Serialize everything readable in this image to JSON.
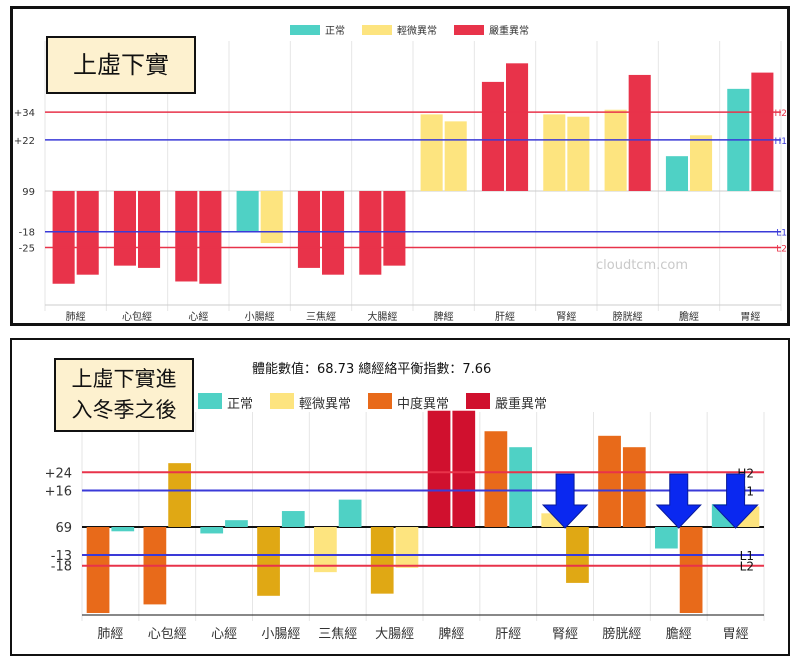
{
  "watermark": "cloudtcm.com",
  "top_panel": {
    "label": "上虛下實",
    "legend": [
      {
        "name": "正常",
        "color": "#4fd1c5"
      },
      {
        "name": "輕微異常",
        "color": "#fde47f"
      },
      {
        "name": "嚴重異常",
        "color": "#e8334a"
      }
    ]
  },
  "bottom_panel": {
    "label_line1": "上虛下實進",
    "label_line2": "入冬季之後",
    "info": "體能數值：68.73 總經絡平衡指數：7.66",
    "legend": [
      {
        "name": "正常",
        "color": "#4fd1c5"
      },
      {
        "name": "輕微異常",
        "color": "#fde47f"
      },
      {
        "name": "中度異常",
        "color": "#e86a1a"
      },
      {
        "name": "嚴重異常",
        "color": "#d0102e"
      }
    ]
  },
  "chart_data": [
    {
      "type": "bar",
      "categories": [
        "肺經",
        "心包經",
        "心經",
        "小腸經",
        "三焦經",
        "大腸經",
        "脾經",
        "肝經",
        "腎經",
        "膀胱經",
        "膽經",
        "胃經"
      ],
      "baseline_label": "99",
      "ylim": [
        -42,
        56
      ],
      "series": [
        {
          "values": [
            -41,
            -33,
            -40,
            -18,
            -34,
            -37,
            33,
            47,
            33,
            35,
            15,
            44
          ]
        },
        {
          "values": [
            -37,
            -34,
            -41,
            -23,
            -37,
            -33,
            30,
            55,
            32,
            50,
            24,
            51
          ]
        }
      ],
      "bar_colors": [
        [
          "#e8334a",
          "#e8334a"
        ],
        [
          "#e8334a",
          "#e8334a"
        ],
        [
          "#e8334a",
          "#e8334a"
        ],
        [
          "#4fd1c5",
          "#fde47f"
        ],
        [
          "#e8334a",
          "#e8334a"
        ],
        [
          "#e8334a",
          "#e8334a"
        ],
        [
          "#fde47f",
          "#fde47f"
        ],
        [
          "#e8334a",
          "#e8334a"
        ],
        [
          "#fde47f",
          "#fde47f"
        ],
        [
          "#fde47f",
          "#e8334a"
        ],
        [
          "#4fd1c5",
          "#fde47f"
        ],
        [
          "#4fd1c5",
          "#e8334a"
        ]
      ],
      "reference_lines": [
        {
          "name": "H2",
          "value": 34,
          "axis_label": "+34",
          "color": "#e8334a"
        },
        {
          "name": "H1",
          "value": 22,
          "axis_label": "+22",
          "color": "#3a3ad8"
        },
        {
          "name": "L1",
          "value": -18,
          "axis_label": "-18",
          "color": "#3a3ad8"
        },
        {
          "name": "L2",
          "value": -25,
          "axis_label": "-25",
          "color": "#e8334a"
        }
      ]
    },
    {
      "type": "bar",
      "categories": [
        "肺經",
        "心包經",
        "心經",
        "小腸經",
        "三焦經",
        "大腸經",
        "脾經",
        "肝經",
        "腎經",
        "膀胱經",
        "膽經",
        "胃經"
      ],
      "baseline_label": "69",
      "ylim": [
        -40,
        50
      ],
      "series": [
        {
          "values": [
            -40,
            -36,
            -3,
            -32,
            -21,
            -31,
            51,
            42,
            6,
            40,
            -10,
            10
          ]
        },
        {
          "values": [
            -2,
            28,
            3,
            7,
            12,
            -19,
            51,
            35,
            -26,
            35,
            -40,
            9
          ]
        }
      ],
      "bar_colors": [
        [
          "#e86a1a",
          "#4fd1c5"
        ],
        [
          "#e86a1a",
          "#e0a814"
        ],
        [
          "#4fd1c5",
          "#4fd1c5"
        ],
        [
          "#e0a814",
          "#4fd1c5"
        ],
        [
          "#fde47f",
          "#4fd1c5"
        ],
        [
          "#e0a814",
          "#fde47f"
        ],
        [
          "#d0102e",
          "#d0102e"
        ],
        [
          "#e86a1a",
          "#4fd1c5"
        ],
        [
          "#fde47f",
          "#e0a814"
        ],
        [
          "#e86a1a",
          "#e86a1a"
        ],
        [
          "#4fd1c5",
          "#e86a1a"
        ],
        [
          "#4fd1c5",
          "#fde47f"
        ]
      ],
      "reference_lines": [
        {
          "name": "H2",
          "value": 24,
          "axis_label": "+24",
          "color": "#e8334a"
        },
        {
          "name": "H1",
          "value": 16,
          "axis_label": "+16",
          "color": "#3a3ad8"
        },
        {
          "name": "L1",
          "value": -13,
          "axis_label": "-13",
          "color": "#3a3ad8"
        },
        {
          "name": "L2",
          "value": -18,
          "axis_label": "-18",
          "color": "#e8334a"
        }
      ],
      "arrows_at": [
        "腎經",
        "膽經",
        "胃經"
      ]
    }
  ]
}
